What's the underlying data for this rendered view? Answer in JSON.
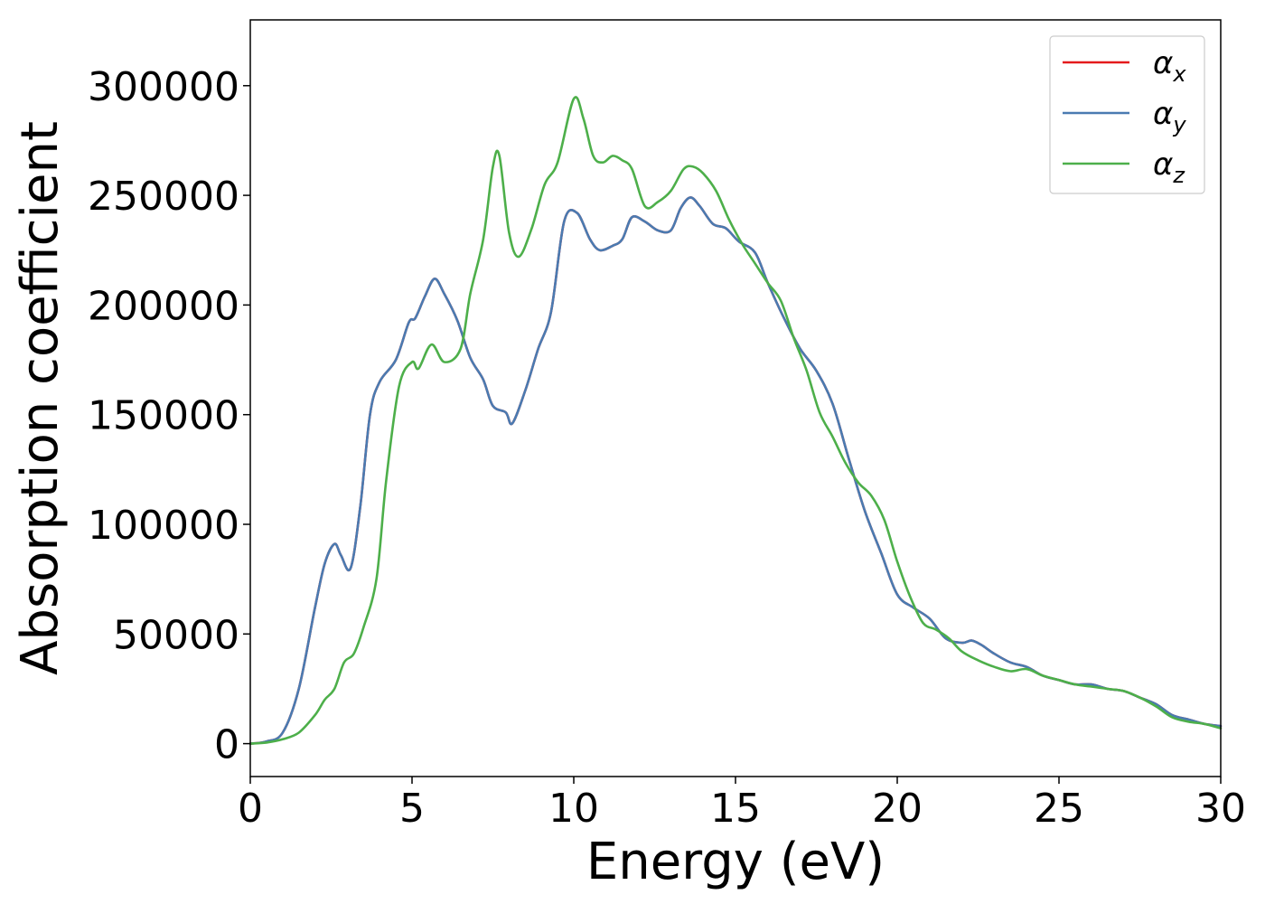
{
  "chart_data": {
    "type": "line",
    "xlabel": "Energy (eV)",
    "ylabel": "Absorption coefficient",
    "xlim": [
      0,
      30
    ],
    "ylim": [
      -15000,
      330000
    ],
    "xticks": [
      0,
      5,
      10,
      15,
      20,
      25,
      30
    ],
    "yticks": [
      0,
      50000,
      100000,
      150000,
      200000,
      250000,
      300000
    ],
    "grid": false,
    "legend_position": "top-right",
    "series": [
      {
        "name": "αx",
        "legend_symbol": "α",
        "legend_subscript": "x",
        "color": "#e41a1c",
        "x": [
          0,
          0.5,
          1,
          1.5,
          2,
          2.3,
          2.6,
          2.8,
          3.1,
          3.4,
          3.7,
          4,
          4.5,
          4.9,
          5.1,
          5.4,
          5.7,
          6,
          6.4,
          6.8,
          7.2,
          7.5,
          7.9,
          8.1,
          8.5,
          8.9,
          9.3,
          9.7,
          10.1,
          10.5,
          10.8,
          11.2,
          11.5,
          11.8,
          12.2,
          12.6,
          13,
          13.3,
          13.6,
          13.9,
          14.3,
          14.7,
          15.1,
          15.6,
          16,
          16.5,
          17,
          17.5,
          18,
          18.5,
          19,
          19.5,
          20,
          20.5,
          21,
          21.5,
          22,
          22.3,
          22.6,
          23,
          23.5,
          24,
          24.5,
          25,
          25.5,
          26,
          26.5,
          27,
          27.5,
          28,
          28.5,
          29,
          29.5,
          30
        ],
        "y": [
          0,
          1000,
          5000,
          25000,
          62000,
          82000,
          91000,
          86000,
          80000,
          108000,
          150000,
          165000,
          175000,
          192000,
          194000,
          204000,
          212000,
          205000,
          193000,
          176000,
          166000,
          154000,
          151000,
          146000,
          161000,
          180000,
          197000,
          238000,
          242000,
          230000,
          225000,
          227000,
          230000,
          240000,
          238000,
          234000,
          234000,
          244000,
          249000,
          245000,
          237000,
          235000,
          229000,
          224000,
          210000,
          194000,
          180000,
          170000,
          155000,
          130000,
          106000,
          87000,
          68000,
          62000,
          57000,
          48000,
          46000,
          47000,
          45000,
          41000,
          37000,
          35000,
          31000,
          29000,
          27000,
          27000,
          25000,
          24000,
          21000,
          18000,
          13000,
          11000,
          9000,
          8000
        ]
      },
      {
        "name": "αy",
        "legend_symbol": "α",
        "legend_subscript": "y",
        "color": "#4a7bb1",
        "x": [
          0,
          0.5,
          1,
          1.5,
          2,
          2.3,
          2.6,
          2.8,
          3.1,
          3.4,
          3.7,
          4,
          4.5,
          4.9,
          5.1,
          5.4,
          5.7,
          6,
          6.4,
          6.8,
          7.2,
          7.5,
          7.9,
          8.1,
          8.5,
          8.9,
          9.3,
          9.7,
          10.1,
          10.5,
          10.8,
          11.2,
          11.5,
          11.8,
          12.2,
          12.6,
          13,
          13.3,
          13.6,
          13.9,
          14.3,
          14.7,
          15.1,
          15.6,
          16,
          16.5,
          17,
          17.5,
          18,
          18.5,
          19,
          19.5,
          20,
          20.5,
          21,
          21.5,
          22,
          22.3,
          22.6,
          23,
          23.5,
          24,
          24.5,
          25,
          25.5,
          26,
          26.5,
          27,
          27.5,
          28,
          28.5,
          29,
          29.5,
          30
        ],
        "y": [
          0,
          1000,
          5000,
          25000,
          62000,
          82000,
          91000,
          86000,
          80000,
          108000,
          150000,
          165000,
          175000,
          192000,
          194000,
          204000,
          212000,
          205000,
          193000,
          176000,
          166000,
          154000,
          151000,
          146000,
          161000,
          180000,
          197000,
          238000,
          242000,
          230000,
          225000,
          227000,
          230000,
          240000,
          238000,
          234000,
          234000,
          244000,
          249000,
          245000,
          237000,
          235000,
          229000,
          224000,
          210000,
          194000,
          180000,
          170000,
          155000,
          130000,
          106000,
          87000,
          68000,
          62000,
          57000,
          48000,
          46000,
          47000,
          45000,
          41000,
          37000,
          35000,
          31000,
          29000,
          27000,
          27000,
          25000,
          24000,
          21000,
          18000,
          13000,
          11000,
          9000,
          8000
        ]
      },
      {
        "name": "αz",
        "legend_symbol": "α",
        "legend_subscript": "z",
        "color": "#4daf4a",
        "x": [
          0,
          0.5,
          1,
          1.5,
          2,
          2.3,
          2.6,
          2.9,
          3.2,
          3.5,
          3.9,
          4.2,
          4.6,
          5,
          5.2,
          5.6,
          6,
          6.5,
          6.8,
          7.2,
          7.5,
          7.7,
          8,
          8.3,
          8.7,
          9.1,
          9.5,
          10,
          10.3,
          10.6,
          10.9,
          11.2,
          11.5,
          11.8,
          12.2,
          12.6,
          13,
          13.4,
          13.7,
          14,
          14.4,
          14.8,
          15.2,
          15.6,
          16,
          16.4,
          16.8,
          17.2,
          17.6,
          18,
          18.4,
          18.8,
          19.2,
          19.6,
          20,
          20.4,
          20.8,
          21.2,
          21.6,
          22,
          22.5,
          23,
          23.5,
          24,
          24.5,
          25,
          25.5,
          26,
          26.5,
          27,
          27.5,
          28,
          28.5,
          29,
          29.5,
          30
        ],
        "y": [
          0,
          500,
          2000,
          5000,
          13000,
          20000,
          25000,
          37000,
          41000,
          53000,
          75000,
          120000,
          163000,
          174000,
          171000,
          182000,
          174000,
          180000,
          205000,
          230000,
          263000,
          268000,
          233000,
          222000,
          235000,
          255000,
          265000,
          294000,
          285000,
          268000,
          265000,
          268000,
          266000,
          262000,
          245000,
          247000,
          252000,
          262000,
          263000,
          260000,
          252000,
          239000,
          228000,
          219000,
          210000,
          202000,
          185000,
          170000,
          151000,
          140000,
          128000,
          119000,
          113000,
          102000,
          83000,
          67000,
          55000,
          52000,
          48000,
          42000,
          38000,
          35000,
          33000,
          34000,
          31000,
          29000,
          27000,
          26000,
          25000,
          24000,
          21000,
          17000,
          12000,
          10000,
          9000,
          7000
        ]
      }
    ]
  }
}
